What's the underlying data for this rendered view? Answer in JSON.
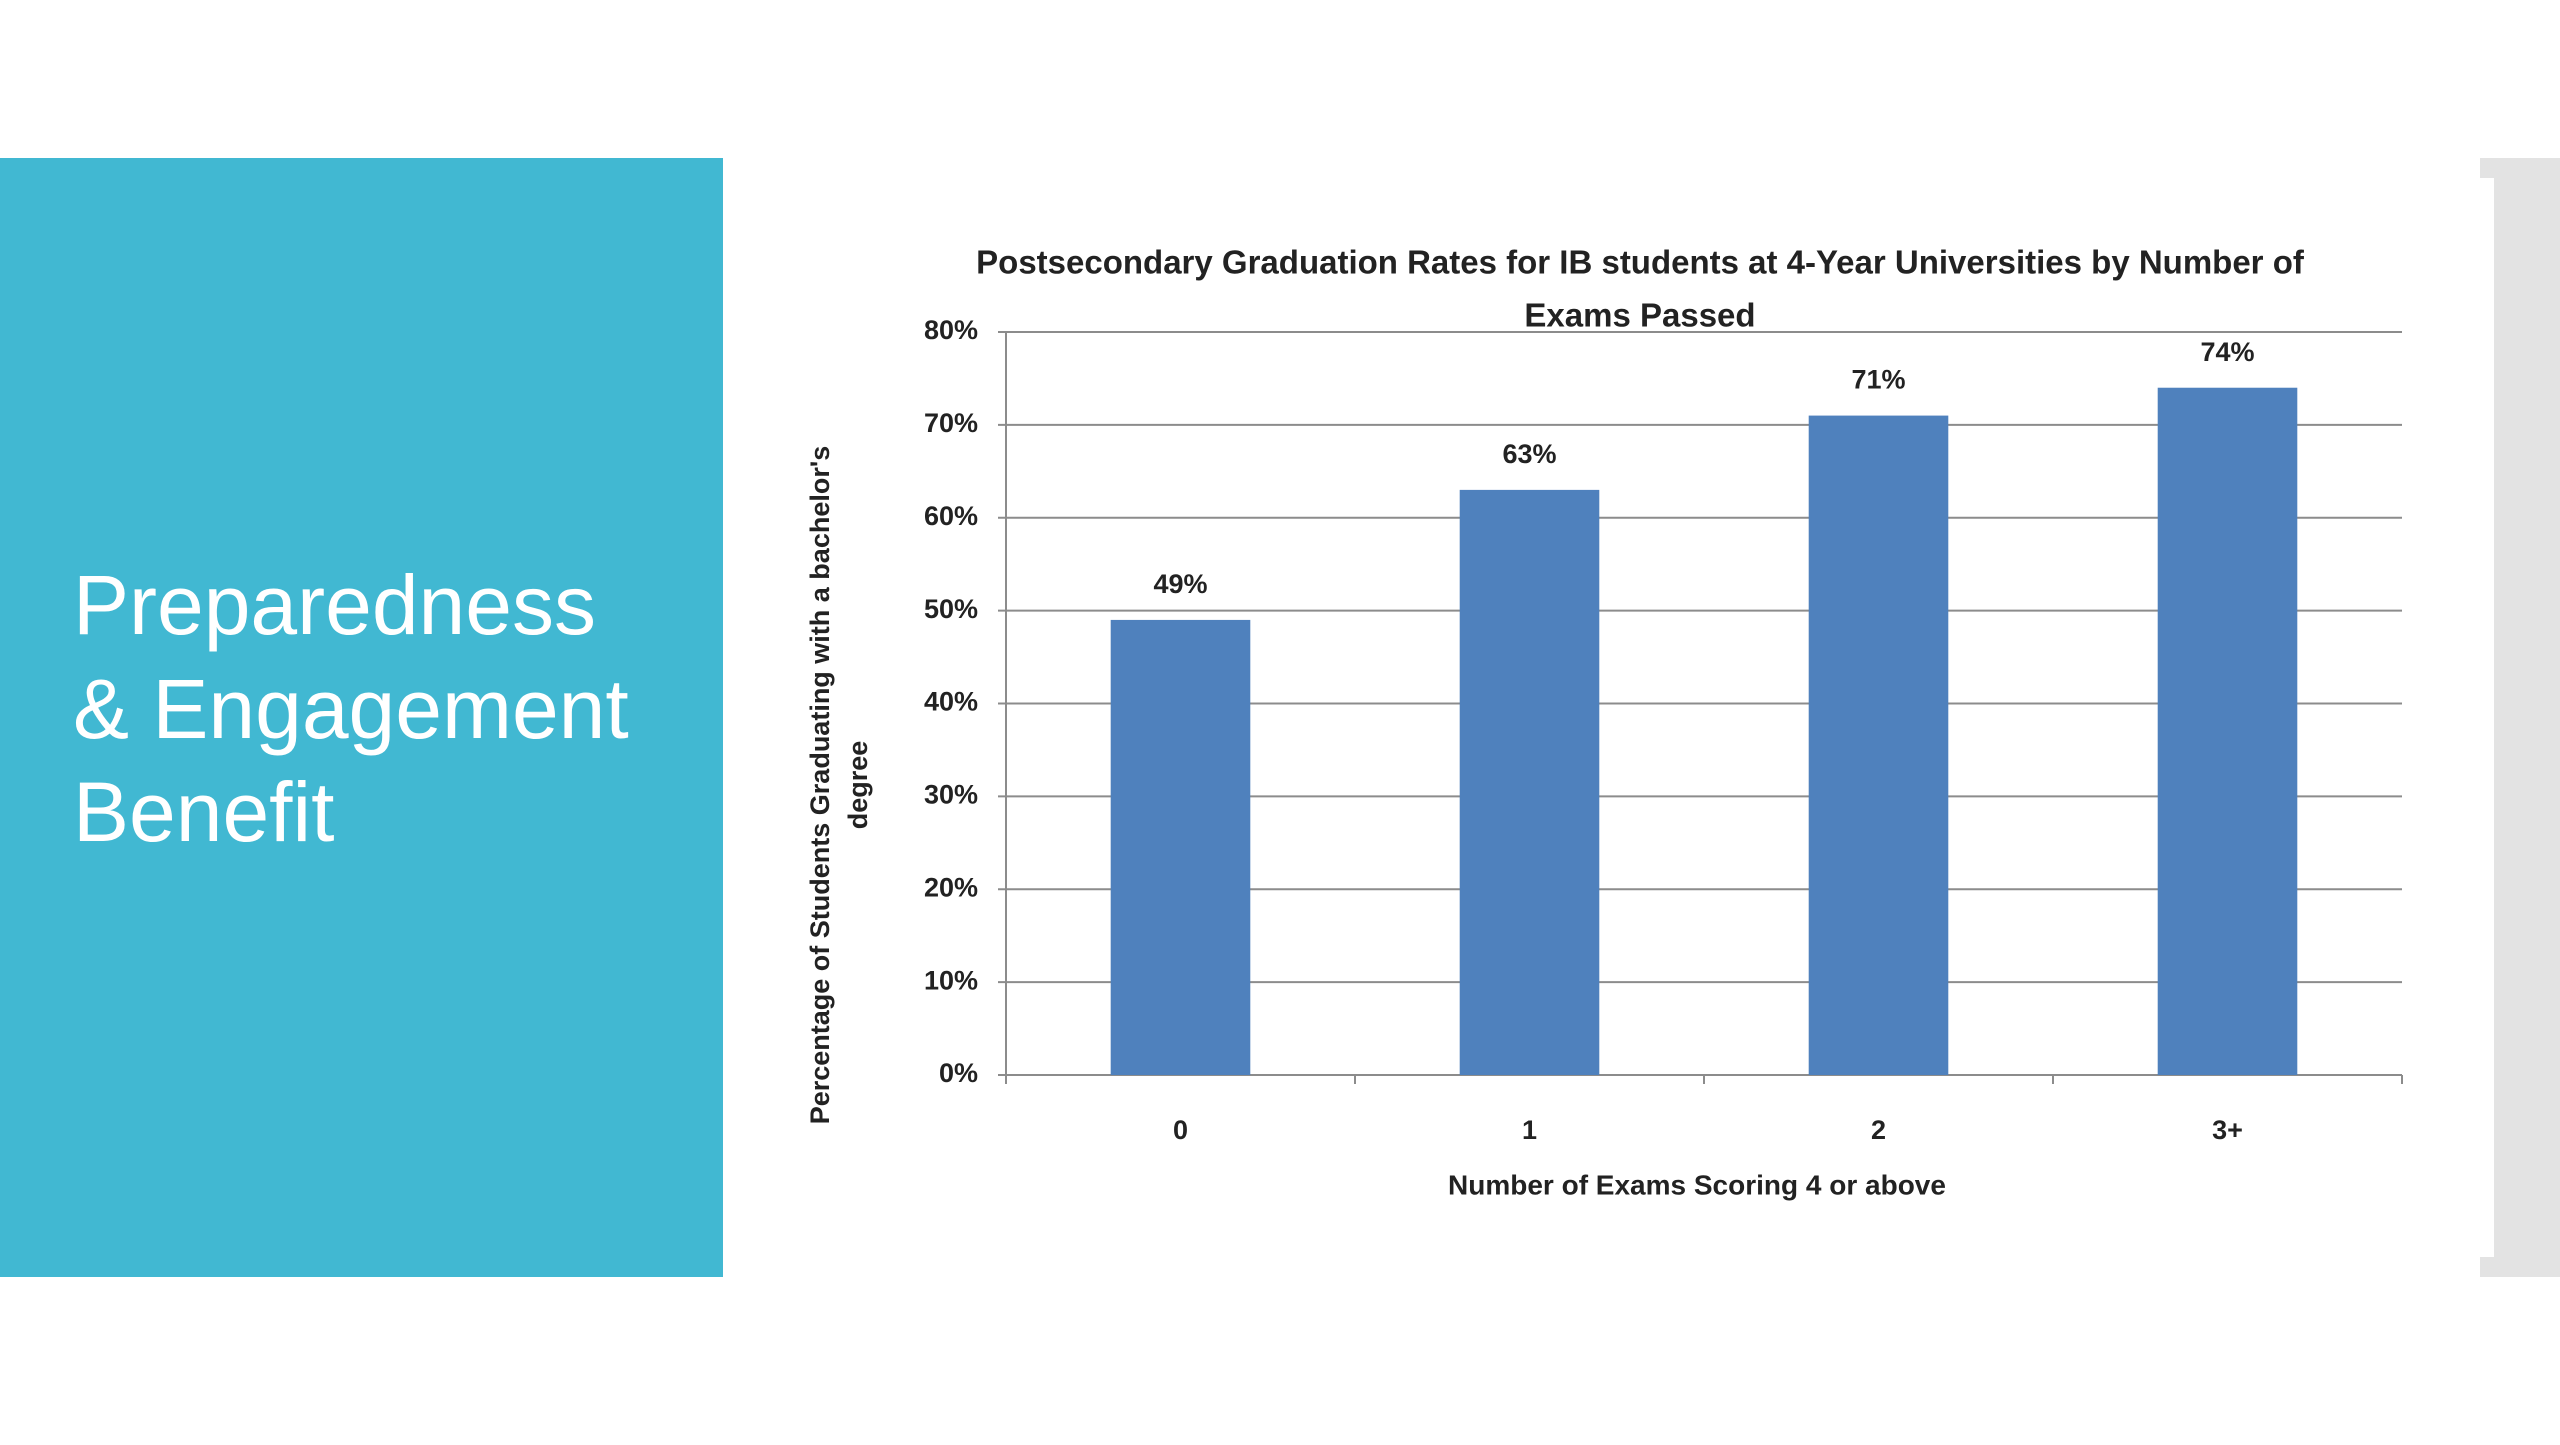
{
  "slide_title": [
    "Preparedness",
    "& Engagement",
    "Benefit"
  ],
  "chart_data": {
    "type": "bar",
    "title": [
      "Postsecondary Graduation Rates for IB students at 4-Year Universities by Number of",
      "Exams Passed"
    ],
    "x_label": "Number of Exams Scoring  4 or above",
    "y_label": [
      "Percentage of Students Graduating  with a bachelor's",
      "degree"
    ],
    "categories": [
      "0",
      "1",
      "2",
      "3+"
    ],
    "values": [
      49,
      63,
      71,
      74
    ],
    "value_labels": [
      "49%",
      "63%",
      "71%",
      "74%"
    ],
    "color": "#4f81bd",
    "ylim": [
      0,
      80
    ],
    "yticks": [
      {
        "value": 0,
        "label": "0%"
      },
      {
        "value": 10,
        "label": "10%"
      },
      {
        "value": 20,
        "label": "20%"
      },
      {
        "value": 30,
        "label": "30%"
      },
      {
        "value": 40,
        "label": "40%"
      },
      {
        "value": 50,
        "label": "50%"
      },
      {
        "value": 60,
        "label": "60%"
      },
      {
        "value": 70,
        "label": "70%"
      },
      {
        "value": 80,
        "label": "80%"
      }
    ],
    "grid": true
  }
}
